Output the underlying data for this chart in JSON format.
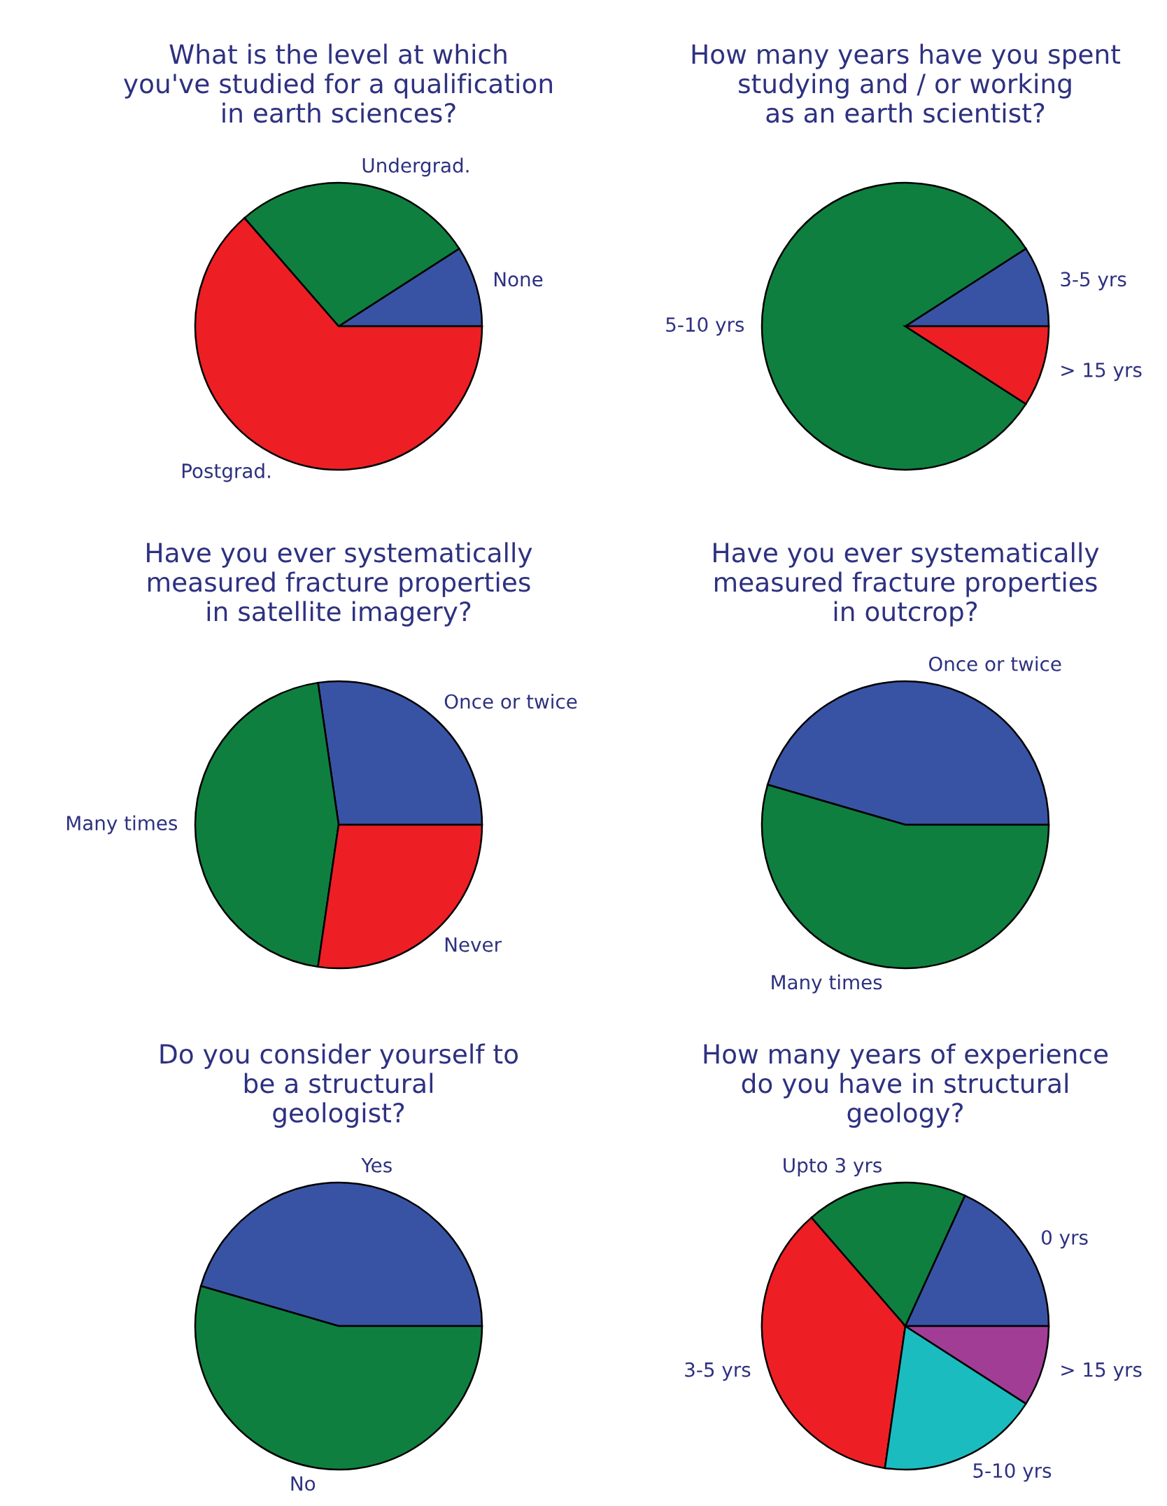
{
  "chart_data": [
    {
      "type": "pie",
      "title": "What is the level at which\nyou've studied for a qualification\nin earth sciences?",
      "categories": [
        "None",
        "Undergrad.",
        "Postgrad."
      ],
      "values": [
        9.1,
        27.3,
        63.6
      ],
      "colors": [
        "#3953a4",
        "#0f7f3f",
        "#ed1f24"
      ]
    },
    {
      "type": "pie",
      "title": "How many years have you spent\nstudying and / or working\nas an earth scientist?",
      "categories": [
        "3-5 yrs",
        "5-10 yrs",
        "> 15 yrs"
      ],
      "values": [
        9.1,
        81.8,
        9.1
      ],
      "colors": [
        "#3953a4",
        "#0f7f3f",
        "#ed1f24"
      ]
    },
    {
      "type": "pie",
      "title": "Have you ever systematically\nmeasured fracture properties\nin satellite imagery?",
      "categories": [
        "Once or twice",
        "Many times",
        "Never"
      ],
      "values": [
        27.3,
        45.4,
        27.3
      ],
      "colors": [
        "#3953a4",
        "#0f7f3f",
        "#ed1f24"
      ]
    },
    {
      "type": "pie",
      "title": "Have you ever systematically\nmeasured fracture properties\nin outcrop?",
      "categories": [
        "Once or twice",
        "Many times"
      ],
      "values": [
        45.5,
        54.5
      ],
      "colors": [
        "#3953a4",
        "#0f7f3f"
      ]
    },
    {
      "type": "pie",
      "title": "Do you consider yourself to\nbe a structural\ngeologist?",
      "categories": [
        "Yes",
        "No"
      ],
      "values": [
        45.5,
        54.5
      ],
      "colors": [
        "#3953a4",
        "#0f7f3f"
      ]
    },
    {
      "type": "pie",
      "title": "How many years of experience\ndo you have in structural\ngeology?",
      "categories": [
        "0 yrs",
        "Upto 3 yrs",
        "3-5 yrs",
        "5-10 yrs",
        "> 15 yrs"
      ],
      "values": [
        18.2,
        18.2,
        36.4,
        18.2,
        9.1
      ],
      "colors": [
        "#3953a4",
        "#0f7f3f",
        "#ed1f24",
        "#1bbcbf",
        "#a23d95"
      ]
    }
  ]
}
